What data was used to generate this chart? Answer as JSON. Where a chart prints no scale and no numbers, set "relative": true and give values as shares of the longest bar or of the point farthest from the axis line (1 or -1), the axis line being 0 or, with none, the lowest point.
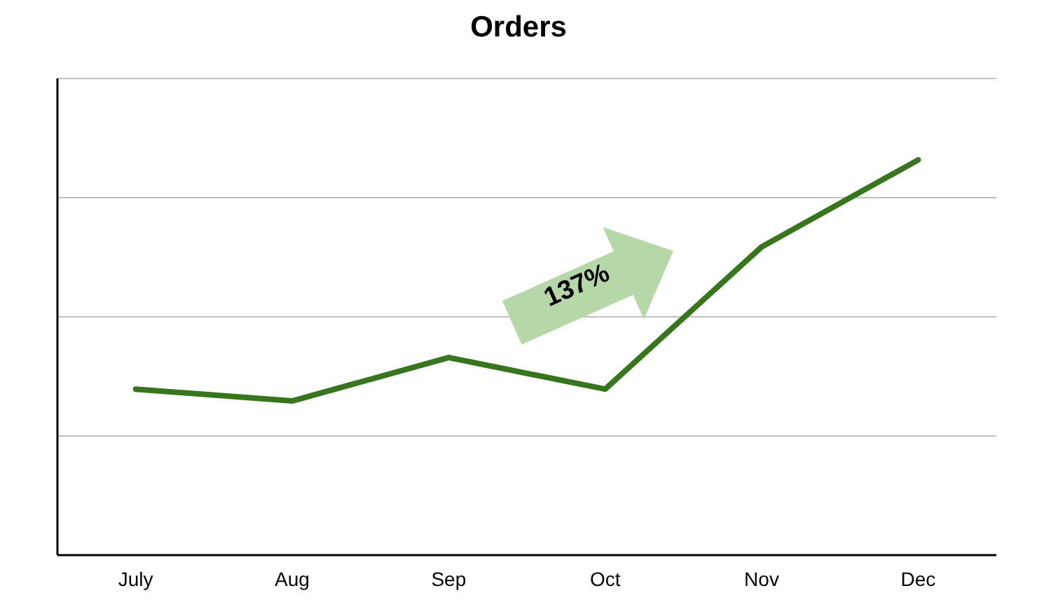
{
  "chart_data": {
    "type": "line",
    "title": "Orders",
    "categories": [
      "July",
      "Aug",
      "Sep",
      "Oct",
      "Nov",
      "Dec"
    ],
    "series": [
      {
        "color": "#38761d",
        "values": [
          0.42,
          0.39,
          0.5,
          0.42,
          0.78,
          1
        ]
      }
    ],
    "relative": true,
    "grid": "y",
    "marker": "none",
    "line_style": "solid",
    "annotations": [
      "137%"
    ]
  }
}
